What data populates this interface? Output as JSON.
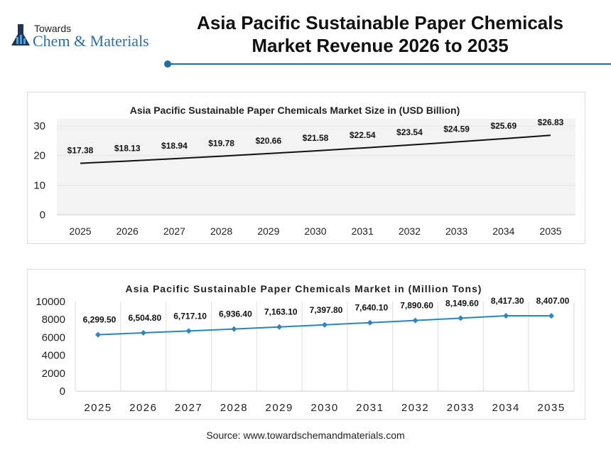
{
  "header": {
    "logo_top": "Towards",
    "logo_main": "Chem & Materials",
    "title_line1": "Asia Pacific Sustainable Paper Chemicals",
    "title_line2": "Market Revenue 2026 to 2035",
    "accent": "#1a6fa8"
  },
  "chart_data": [
    {
      "type": "line",
      "title": "Asia Pacific Sustainable Paper Chemicals Market Size in (USD Billion)",
      "categories": [
        "2025",
        "2026",
        "2027",
        "2028",
        "2029",
        "2030",
        "2031",
        "2032",
        "2033",
        "2034",
        "2035"
      ],
      "values": [
        17.38,
        18.13,
        18.94,
        19.78,
        20.66,
        21.58,
        22.54,
        23.54,
        24.59,
        25.69,
        26.83
      ],
      "labels": [
        "$17.38",
        "$18.13",
        "$18.94",
        "$19.78",
        "$20.66",
        "$21.58",
        "$22.54",
        "$23.54",
        "$24.59",
        "$25.69",
        "$26.83"
      ],
      "ylim": [
        0,
        30
      ],
      "yticks": [
        "0",
        "10",
        "20",
        "30"
      ],
      "color": "#111111",
      "markers": false,
      "grid": true
    },
    {
      "type": "line",
      "title": "Asia Pacific Sustainable Paper Chemicals Market in (Million Tons)",
      "categories": [
        "2025",
        "2026",
        "2027",
        "2028",
        "2029",
        "2030",
        "2031",
        "2032",
        "2033",
        "2034",
        "2035"
      ],
      "values": [
        6299.5,
        6504.8,
        6717.1,
        6936.4,
        7163.1,
        7397.8,
        7640.1,
        7890.6,
        8149.6,
        8417.3,
        8407.0
      ],
      "labels": [
        "6,299.50",
        "6,504.80",
        "6,717.10",
        "6,936.40",
        "7,163.10",
        "7,397.80",
        "7,640.10",
        "7,890.60",
        "8,149.60",
        "8,417.30",
        "8,407.00"
      ],
      "ylim": [
        0,
        10000
      ],
      "yticks": [
        "0",
        "2000",
        "4000",
        "6000",
        "8000",
        "10000"
      ],
      "color": "#2a86c0",
      "markers": true,
      "grid": true
    }
  ],
  "footer": {
    "source": "Source: www.towardschemandmaterials.com"
  }
}
